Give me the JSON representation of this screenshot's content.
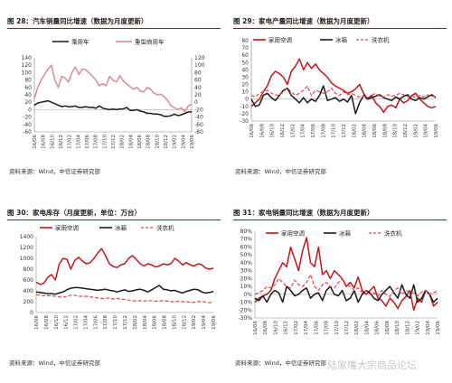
{
  "panels": [
    {
      "title": "图 28：汽车销量同比增速（数据为月度更新）",
      "source": "资料来源：Wind，中信证券研究部"
    },
    {
      "title": "图 29：家电产量同比增速（数据为月度更新）",
      "source": "资料来源：Wind，中信证券研究部"
    },
    {
      "title": "图 30：家电库存（月度更新，单位：万台）",
      "source": "资料来源：Wind，中信证券研究部"
    },
    {
      "title": "图 31：家电销量同比增速（数据为月度更新）",
      "source": "资料来源：Wind，中信证券研究部"
    }
  ],
  "watermark": "陆家嘴大宗商品论坛",
  "colors": {
    "red": "#c3161c",
    "black": "#1a1a1a",
    "pink": "#d98c92",
    "dashed_red": "#e0464c"
  },
  "chart_data": [
    {
      "type": "line",
      "title": "图 28：汽车销量同比增速（数据为月度更新）",
      "x_ticks": [
        "16/06",
        "16/08",
        "16/10",
        "16/12",
        "17/02",
        "17/04",
        "17/06",
        "17/08",
        "17/10",
        "17/12",
        "18/02",
        "18/04",
        "18/06",
        "18/08",
        "18/10",
        "18/12",
        "19/02",
        "19/04",
        "19/06"
      ],
      "legend_position": "top",
      "axes": {
        "left": {
          "ylim": [
            -60,
            140
          ],
          "ticks": [
            -60,
            -40,
            -20,
            0,
            20,
            40,
            60,
            80,
            100,
            120,
            140
          ]
        },
        "right": {
          "ylim": [
            -80,
            120
          ],
          "ticks": [
            -80,
            -60,
            -40,
            -20,
            0,
            20,
            40,
            60,
            80,
            100,
            120
          ]
        }
      },
      "series": [
        {
          "name": "乘用车",
          "axis": "left",
          "style": "solid",
          "color": "#1a1a1a",
          "values": [
            12,
            18,
            20,
            22,
            24,
            20,
            16,
            12,
            8,
            10,
            8,
            8,
            10,
            6,
            6,
            8,
            6,
            6,
            4,
            10,
            4,
            2,
            0,
            2,
            0,
            2,
            2,
            6,
            -2,
            -2,
            0,
            -4,
            -6,
            -10,
            -10,
            -12,
            -12,
            -14,
            -18,
            -18,
            -16,
            -12,
            -16,
            -14,
            -10,
            -6,
            -6
          ]
        },
        {
          "name": "重型商用车",
          "axis": "right",
          "style": "solid",
          "color": "#d98c92",
          "values": [
            10,
            40,
            60,
            75,
            90,
            100,
            60,
            40,
            70,
            65,
            55,
            80,
            95,
            75,
            90,
            88,
            80,
            70,
            60,
            45,
            50,
            45,
            70,
            60,
            55,
            72,
            58,
            50,
            42,
            35,
            40,
            30,
            28,
            40,
            35,
            25,
            20,
            22,
            15,
            5,
            -10,
            -15,
            -20,
            -15,
            -25,
            -10,
            -5
          ]
        }
      ]
    },
    {
      "type": "line",
      "title": "图 29：家电产量同比增速（数据为月度更新）",
      "x_ticks": [
        "16/06",
        "16/08",
        "16/10",
        "16/12",
        "17/02",
        "17/04",
        "17/06",
        "17/08",
        "17/10",
        "17/12",
        "18/02",
        "18/04",
        "18/06",
        "18/08",
        "18/10",
        "18/12",
        "19/02",
        "19/04",
        "19/06"
      ],
      "legend_position": "top",
      "ylim": [
        -30,
        80
      ],
      "y_ticks": [
        -30,
        -20,
        -10,
        0,
        10,
        20,
        30,
        40,
        50,
        60,
        70,
        80
      ],
      "series": [
        {
          "name": "家用空调",
          "style": "solid",
          "color": "#c3161c",
          "values": [
            -10,
            -5,
            0,
            10,
            18,
            32,
            38,
            35,
            30,
            20,
            38,
            45,
            55,
            40,
            50,
            42,
            48,
            40,
            35,
            30,
            22,
            18,
            15,
            12,
            8,
            10,
            14,
            20,
            8,
            0,
            5,
            -5,
            -10,
            -18,
            -10,
            -8,
            -12,
            0,
            -5,
            -2,
            5,
            8,
            0,
            -5,
            -10,
            -12,
            -10
          ]
        },
        {
          "name": "冰箱",
          "style": "solid",
          "color": "#1a1a1a",
          "values": [
            0,
            -10,
            -8,
            5,
            8,
            2,
            -2,
            5,
            12,
            15,
            5,
            0,
            -5,
            2,
            -5,
            0,
            -3,
            5,
            18,
            -2,
            0,
            2,
            -3,
            0,
            -4,
            5,
            -20,
            -5,
            5,
            0,
            2,
            4,
            6,
            2,
            0,
            -2,
            3,
            0,
            4,
            6,
            0,
            -2,
            2,
            0,
            3,
            6,
            2
          ]
        },
        {
          "name": "洗衣机",
          "style": "dashed",
          "color": "#e0464c",
          "values": [
            5,
            3,
            8,
            10,
            12,
            8,
            6,
            5,
            10,
            15,
            10,
            5,
            8,
            12,
            18,
            5,
            12,
            10,
            8,
            10,
            15,
            8,
            5,
            10,
            6,
            8,
            5,
            3,
            4,
            2,
            5,
            8,
            4,
            3,
            6,
            4,
            5,
            8,
            6,
            3,
            4,
            2,
            5,
            3,
            6,
            4,
            3
          ]
        }
      ]
    },
    {
      "type": "line",
      "title": "图 30：家电库存（月度更新，单位：万台）",
      "x_ticks": [
        "16/06",
        "16/08",
        "16/10",
        "16/12",
        "17/02",
        "17/04",
        "17/06",
        "17/08",
        "17/10",
        "17/12",
        "18/02",
        "18/04",
        "18/06",
        "18/08",
        "18/10",
        "18/12",
        "19/02",
        "19/04",
        "19/06"
      ],
      "legend_position": "top",
      "ylim": [
        0,
        1400
      ],
      "y_ticks": [
        0,
        200,
        400,
        600,
        800,
        1000,
        1200,
        1400
      ],
      "series": [
        {
          "name": "家用空调",
          "style": "solid",
          "color": "#c3161c",
          "values": [
            560,
            520,
            540,
            650,
            700,
            600,
            900,
            1000,
            980,
            800,
            960,
            1020,
            950,
            900,
            920,
            1000,
            1100,
            1180,
            1050,
            900,
            850,
            830,
            880,
            900,
            1000,
            1050,
            980,
            900,
            860,
            900,
            880,
            840,
            860,
            900,
            880,
            900,
            1000,
            950,
            880,
            920,
            880,
            860,
            900,
            880,
            820,
            800,
            820
          ]
        },
        {
          "name": "冰箱",
          "style": "solid",
          "color": "#1a1a1a",
          "values": [
            380,
            370,
            360,
            350,
            350,
            340,
            360,
            380,
            420,
            450,
            460,
            460,
            450,
            440,
            430,
            420,
            410,
            420,
            430,
            410,
            400,
            380,
            400,
            420,
            390,
            400,
            420,
            430,
            410,
            380,
            420,
            460,
            500,
            430,
            420,
            400,
            410,
            380,
            360,
            390,
            410,
            430,
            420,
            380,
            360,
            370,
            390
          ]
        },
        {
          "name": "洗衣机",
          "style": "dashed",
          "color": "#e0464c",
          "values": [
            330,
            320,
            310,
            310,
            310,
            300,
            290,
            280,
            300,
            320,
            320,
            300,
            300,
            300,
            290,
            280,
            270,
            260,
            260,
            270,
            250,
            260,
            250,
            240,
            230,
            220,
            210,
            220,
            210,
            220,
            220,
            210,
            210,
            220,
            210,
            200,
            200,
            210,
            200,
            200,
            190,
            190,
            200,
            210,
            190,
            180,
            200
          ]
        }
      ]
    },
    {
      "type": "line",
      "title": "图 31：家电销量同比增速（数据为月度更新）",
      "x_ticks": [
        "16/06",
        "16/08",
        "16/10",
        "16/12",
        "17/02",
        "17/04",
        "17/06",
        "17/08",
        "17/10",
        "17/12",
        "18/02",
        "18/04",
        "18/06",
        "18/08",
        "18/10",
        "18/12",
        "19/02",
        "19/04",
        "19/06"
      ],
      "legend_position": "top",
      "ylim": [
        -30,
        80
      ],
      "y_ticks": [
        "-30%",
        "-20%",
        "-10%",
        "0%",
        "10%",
        "20%",
        "30%",
        "40%",
        "50%",
        "60%",
        "70%",
        "80%"
      ],
      "series": [
        {
          "name": "家用空调",
          "style": "solid",
          "color": "#c3161c",
          "values": [
            -10,
            -5,
            -2,
            0,
            5,
            20,
            30,
            40,
            35,
            60,
            45,
            30,
            55,
            72,
            40,
            35,
            60,
            25,
            30,
            20,
            30,
            25,
            20,
            10,
            15,
            8,
            22,
            5,
            0,
            5,
            10,
            -5,
            -8,
            -15,
            -5,
            -10,
            -18,
            -8,
            -3,
            5,
            -20,
            -5,
            -10,
            5,
            0,
            -15,
            -10
          ]
        },
        {
          "name": "冰箱",
          "style": "solid",
          "color": "#1a1a1a",
          "values": [
            -5,
            -8,
            -2,
            -10,
            0,
            5,
            2,
            -10,
            10,
            5,
            -2,
            0,
            5,
            8,
            -5,
            0,
            2,
            -8,
            5,
            10,
            0,
            -2,
            5,
            -8,
            -5,
            5,
            -10,
            0,
            5,
            2,
            -5,
            -8,
            0,
            5,
            10,
            2,
            -5,
            12,
            0,
            -5,
            12,
            -10,
            -5,
            5,
            0,
            -10,
            -5
          ]
        },
        {
          "name": "洗衣机",
          "style": "dashed",
          "color": "#e0464c",
          "values": [
            0,
            2,
            5,
            10,
            8,
            12,
            20,
            15,
            10,
            8,
            18,
            12,
            10,
            15,
            25,
            10,
            5,
            12,
            15,
            10,
            8,
            15,
            20,
            12,
            10,
            5,
            8,
            2,
            5,
            0,
            2,
            -2,
            5,
            0,
            -3,
            5,
            8,
            0,
            5,
            3,
            2,
            -2,
            3,
            5,
            0,
            2,
            4
          ]
        }
      ]
    }
  ]
}
